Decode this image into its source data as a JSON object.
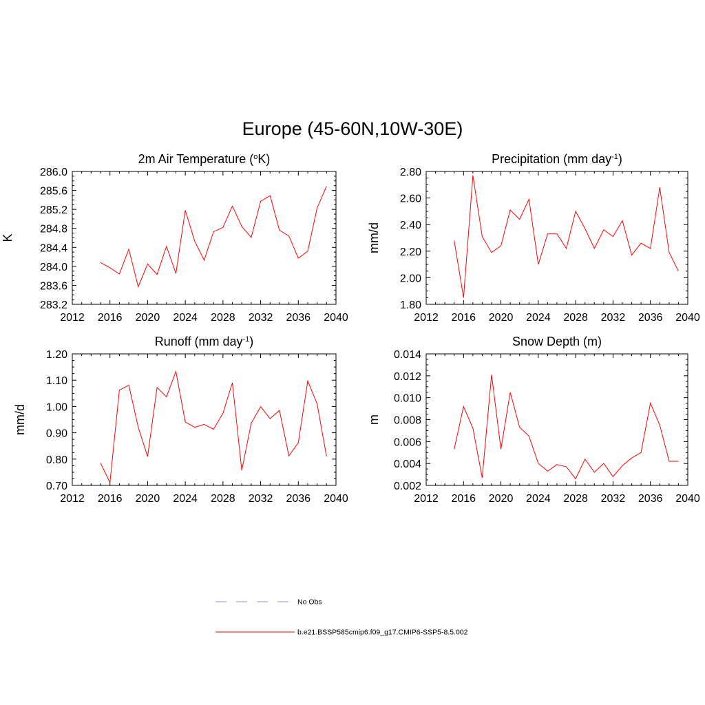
{
  "figure_title": "Europe (45-60N,10W-30E)",
  "legend": {
    "entries": [
      {
        "label": "No Obs",
        "color": "#a8a8f0",
        "dash": "dashed"
      },
      {
        "label": "b.e21.BSSP585cmip6.f09_g17.CMIP6-SSP5-8.5.002",
        "color": "#ff0000",
        "dash": "solid"
      }
    ]
  },
  "chart_data": [
    {
      "type": "line",
      "id": "temperature",
      "title": "2m Air Temperature (",
      "title_sup": "o",
      "title_tail": "K)",
      "xlabel": "",
      "ylabel": "K",
      "xlim": [
        2012,
        2040
      ],
      "ylim": [
        283.2,
        286.0
      ],
      "xticks": [
        2012,
        2016,
        2020,
        2024,
        2028,
        2032,
        2036,
        2040
      ],
      "xtick_labels": [
        "2012",
        "2016",
        "2020",
        "2024",
        "2028",
        "2032",
        "2036",
        "2040"
      ],
      "yticks": [
        283.2,
        283.6,
        284.0,
        284.4,
        284.8,
        285.2,
        285.6,
        286.0
      ],
      "ytick_labels": [
        "283.2",
        "283.6",
        "284.0",
        "284.4",
        "284.8",
        "285.2",
        "285.6",
        "286.0"
      ],
      "series": [
        {
          "name": "b.e21.BSSP585cmip6.f09_g17.CMIP6-SSP5-8.5.002",
          "color": "#ff0000",
          "x": [
            2015,
            2016,
            2017,
            2018,
            2019,
            2020,
            2021,
            2022,
            2023,
            2024,
            2025,
            2026,
            2027,
            2028,
            2029,
            2030,
            2031,
            2032,
            2033,
            2034,
            2035,
            2036,
            2037,
            2038,
            2039
          ],
          "y": [
            284.08,
            283.97,
            283.84,
            284.36,
            283.57,
            284.05,
            283.83,
            284.42,
            283.85,
            285.18,
            284.53,
            284.13,
            284.73,
            284.82,
            285.27,
            284.84,
            284.61,
            285.37,
            285.49,
            284.76,
            284.64,
            284.17,
            284.32,
            285.23,
            285.69
          ]
        }
      ]
    },
    {
      "type": "line",
      "id": "precipitation",
      "title": "Precipitation (mm day",
      "title_sup": "-1",
      "title_tail": ")",
      "xlabel": "",
      "ylabel": "mm/d",
      "xlim": [
        2012,
        2040
      ],
      "ylim": [
        1.8,
        2.8
      ],
      "xticks": [
        2012,
        2016,
        2020,
        2024,
        2028,
        2032,
        2036,
        2040
      ],
      "xtick_labels": [
        "2012",
        "2016",
        "2020",
        "2024",
        "2028",
        "2032",
        "2036",
        "2040"
      ],
      "yticks": [
        1.8,
        2.0,
        2.2,
        2.4,
        2.6,
        2.8
      ],
      "ytick_labels": [
        "1.80",
        "2.00",
        "2.20",
        "2.40",
        "2.60",
        "2.80"
      ],
      "series": [
        {
          "name": "b.e21.BSSP585cmip6.f09_g17.CMIP6-SSP5-8.5.002",
          "color": "#ff0000",
          "x": [
            2015,
            2016,
            2017,
            2018,
            2019,
            2020,
            2021,
            2022,
            2023,
            2024,
            2025,
            2026,
            2027,
            2028,
            2029,
            2030,
            2031,
            2032,
            2033,
            2034,
            2035,
            2036,
            2037,
            2038,
            2039
          ],
          "y": [
            2.28,
            1.85,
            2.77,
            2.31,
            2.19,
            2.24,
            2.51,
            2.44,
            2.59,
            2.1,
            2.33,
            2.33,
            2.22,
            2.5,
            2.37,
            2.22,
            2.36,
            2.31,
            2.43,
            2.17,
            2.26,
            2.22,
            2.68,
            2.19,
            2.05
          ]
        }
      ]
    },
    {
      "type": "line",
      "id": "runoff",
      "title": "Runoff (mm day",
      "title_sup": "-1",
      "title_tail": ")",
      "xlabel": "",
      "ylabel": "mm/d",
      "xlim": [
        2012,
        2040
      ],
      "ylim": [
        0.7,
        1.2
      ],
      "xticks": [
        2012,
        2016,
        2020,
        2024,
        2028,
        2032,
        2036,
        2040
      ],
      "xtick_labels": [
        "2012",
        "2016",
        "2020",
        "2024",
        "2028",
        "2032",
        "2036",
        "2040"
      ],
      "yticks": [
        0.7,
        0.8,
        0.9,
        1.0,
        1.1,
        1.2
      ],
      "ytick_labels": [
        "0.70",
        "0.80",
        "0.90",
        "1.00",
        "1.10",
        "1.20"
      ],
      "series": [
        {
          "name": "b.e21.BSSP585cmip6.f09_g17.CMIP6-SSP5-8.5.002",
          "color": "#ff0000",
          "x": [
            2015,
            2016,
            2017,
            2018,
            2019,
            2020,
            2021,
            2022,
            2023,
            2024,
            2025,
            2026,
            2027,
            2028,
            2029,
            2030,
            2031,
            2032,
            2033,
            2034,
            2035,
            2036,
            2037,
            2038,
            2039
          ],
          "y": [
            0.785,
            0.711,
            1.062,
            1.081,
            0.921,
            0.81,
            1.072,
            1.037,
            1.133,
            0.941,
            0.921,
            0.932,
            0.913,
            0.975,
            1.09,
            0.757,
            0.937,
            0.999,
            0.954,
            0.985,
            0.812,
            0.862,
            1.097,
            1.01,
            0.81
          ]
        }
      ]
    },
    {
      "type": "line",
      "id": "snow_depth",
      "title": "Snow Depth (m)",
      "title_sup": "",
      "title_tail": "",
      "xlabel": "",
      "ylabel": "m",
      "xlim": [
        2012,
        2040
      ],
      "ylim": [
        0.002,
        0.014
      ],
      "xticks": [
        2012,
        2016,
        2020,
        2024,
        2028,
        2032,
        2036,
        2040
      ],
      "xtick_labels": [
        "2012",
        "2016",
        "2020",
        "2024",
        "2028",
        "2032",
        "2036",
        "2040"
      ],
      "yticks": [
        0.002,
        0.004,
        0.006,
        0.008,
        0.01,
        0.012,
        0.014
      ],
      "ytick_labels": [
        "0.002",
        "0.004",
        "0.006",
        "0.008",
        "0.010",
        "0.012",
        "0.014"
      ],
      "series": [
        {
          "name": "b.e21.BSSP585cmip6.f09_g17.CMIP6-SSP5-8.5.002",
          "color": "#ff0000",
          "x": [
            2015,
            2016,
            2017,
            2018,
            2019,
            2020,
            2021,
            2022,
            2023,
            2024,
            2025,
            2026,
            2027,
            2028,
            2029,
            2030,
            2031,
            2032,
            2033,
            2034,
            2035,
            2036,
            2037,
            2038,
            2039
          ],
          "y": [
            0.0053,
            0.0092,
            0.0072,
            0.0027,
            0.0121,
            0.0053,
            0.0105,
            0.0073,
            0.0065,
            0.004,
            0.0033,
            0.0039,
            0.0037,
            0.0026,
            0.0044,
            0.0032,
            0.004,
            0.0028,
            0.0038,
            0.0045,
            0.005,
            0.0095,
            0.0075,
            0.0042,
            0.0042
          ]
        }
      ]
    }
  ]
}
